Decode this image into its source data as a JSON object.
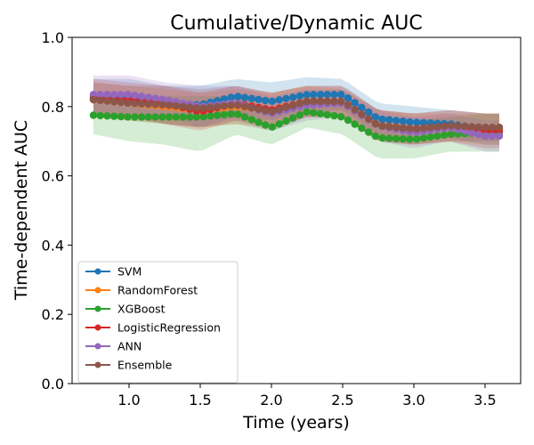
{
  "chart_data": {
    "type": "line",
    "title": "Cumulative/Dynamic AUC",
    "xlabel": "Time (years)",
    "ylabel": "Time-dependent AUC",
    "xlim": [
      0.6,
      3.75
    ],
    "ylim": [
      0.0,
      1.0
    ],
    "xticks": [
      1.0,
      1.5,
      2.0,
      2.5,
      3.0,
      3.5
    ],
    "yticks": [
      0.0,
      0.2,
      0.4,
      0.6,
      0.8,
      1.0
    ],
    "xtick_labels": [
      "1.0",
      "1.5",
      "2.0",
      "2.5",
      "3.0",
      "3.5"
    ],
    "ytick_labels": [
      "0.0",
      "0.2",
      "0.4",
      "0.6",
      "0.8",
      "1.0"
    ],
    "grid": false,
    "legend_position": "lower-left",
    "shaded_confidence_bands": true,
    "series": [
      {
        "name": "SVM",
        "color": "#1f77b4",
        "x": [
          0.75,
          1.0,
          1.25,
          1.5,
          1.75,
          2.0,
          2.25,
          2.5,
          2.75,
          3.0,
          3.25,
          3.5,
          3.6
        ],
        "y": [
          0.83,
          0.83,
          0.81,
          0.805,
          0.83,
          0.815,
          0.835,
          0.835,
          0.765,
          0.755,
          0.75,
          0.735,
          0.735
        ],
        "lo": [
          0.78,
          0.77,
          0.75,
          0.74,
          0.77,
          0.76,
          0.785,
          0.79,
          0.72,
          0.71,
          0.71,
          0.69,
          0.69
        ],
        "hi": [
          0.88,
          0.88,
          0.86,
          0.86,
          0.88,
          0.87,
          0.885,
          0.88,
          0.81,
          0.8,
          0.79,
          0.78,
          0.78
        ]
      },
      {
        "name": "RandomForest",
        "color": "#ff7f0e",
        "x": [
          0.75,
          1.0,
          1.25,
          1.5,
          1.75,
          2.0,
          2.25,
          2.5,
          2.75,
          3.0,
          3.25,
          3.5,
          3.6
        ],
        "y": [
          0.82,
          0.81,
          0.8,
          0.79,
          0.8,
          0.79,
          0.815,
          0.81,
          0.745,
          0.735,
          0.74,
          0.735,
          0.735
        ],
        "lo": [
          0.77,
          0.76,
          0.75,
          0.74,
          0.75,
          0.74,
          0.77,
          0.77,
          0.7,
          0.69,
          0.7,
          0.69,
          0.69
        ],
        "hi": [
          0.87,
          0.86,
          0.85,
          0.84,
          0.85,
          0.84,
          0.86,
          0.85,
          0.79,
          0.78,
          0.78,
          0.78,
          0.78
        ]
      },
      {
        "name": "XGBoost",
        "color": "#2ca02c",
        "x": [
          0.75,
          1.0,
          1.25,
          1.5,
          1.75,
          2.0,
          2.25,
          2.5,
          2.75,
          3.0,
          3.25,
          3.5,
          3.6
        ],
        "y": [
          0.775,
          0.77,
          0.77,
          0.77,
          0.78,
          0.74,
          0.785,
          0.77,
          0.71,
          0.705,
          0.72,
          0.725,
          0.725
        ],
        "lo": [
          0.72,
          0.7,
          0.69,
          0.67,
          0.72,
          0.69,
          0.74,
          0.72,
          0.65,
          0.65,
          0.67,
          0.67,
          0.67
        ],
        "hi": [
          0.83,
          0.83,
          0.83,
          0.83,
          0.83,
          0.8,
          0.83,
          0.82,
          0.77,
          0.76,
          0.77,
          0.78,
          0.78
        ]
      },
      {
        "name": "LogisticRegression",
        "color": "#d62728",
        "x": [
          0.75,
          1.0,
          1.25,
          1.5,
          1.75,
          2.0,
          2.25,
          2.5,
          2.75,
          3.0,
          3.25,
          3.5,
          3.6
        ],
        "y": [
          0.825,
          0.82,
          0.81,
          0.785,
          0.81,
          0.79,
          0.815,
          0.815,
          0.745,
          0.735,
          0.745,
          0.73,
          0.73
        ],
        "lo": [
          0.77,
          0.77,
          0.75,
          0.73,
          0.76,
          0.74,
          0.77,
          0.77,
          0.7,
          0.69,
          0.7,
          0.68,
          0.68
        ],
        "hi": [
          0.88,
          0.87,
          0.86,
          0.84,
          0.86,
          0.84,
          0.86,
          0.86,
          0.79,
          0.78,
          0.79,
          0.78,
          0.78
        ]
      },
      {
        "name": "ANN",
        "color": "#9467bd",
        "x": [
          0.75,
          1.0,
          1.25,
          1.5,
          1.75,
          2.0,
          2.25,
          2.5,
          2.75,
          3.0,
          3.25,
          3.5,
          3.6
        ],
        "y": [
          0.835,
          0.835,
          0.82,
          0.8,
          0.81,
          0.78,
          0.805,
          0.81,
          0.745,
          0.725,
          0.74,
          0.715,
          0.715
        ],
        "lo": [
          0.78,
          0.78,
          0.77,
          0.74,
          0.76,
          0.73,
          0.76,
          0.77,
          0.7,
          0.68,
          0.7,
          0.67,
          0.67
        ],
        "hi": [
          0.89,
          0.89,
          0.87,
          0.86,
          0.86,
          0.83,
          0.85,
          0.85,
          0.79,
          0.77,
          0.78,
          0.76,
          0.76
        ]
      },
      {
        "name": "Ensemble",
        "color": "#8c564b",
        "x": [
          0.75,
          1.0,
          1.25,
          1.5,
          1.75,
          2.0,
          2.25,
          2.5,
          2.75,
          3.0,
          3.25,
          3.5,
          3.6
        ],
        "y": [
          0.82,
          0.81,
          0.805,
          0.795,
          0.805,
          0.785,
          0.815,
          0.815,
          0.745,
          0.735,
          0.745,
          0.74,
          0.74
        ],
        "lo": [
          0.77,
          0.76,
          0.75,
          0.74,
          0.75,
          0.73,
          0.77,
          0.77,
          0.7,
          0.69,
          0.7,
          0.7,
          0.7
        ],
        "hi": [
          0.87,
          0.86,
          0.86,
          0.85,
          0.86,
          0.84,
          0.86,
          0.86,
          0.79,
          0.78,
          0.79,
          0.78,
          0.78
        ]
      }
    ]
  }
}
